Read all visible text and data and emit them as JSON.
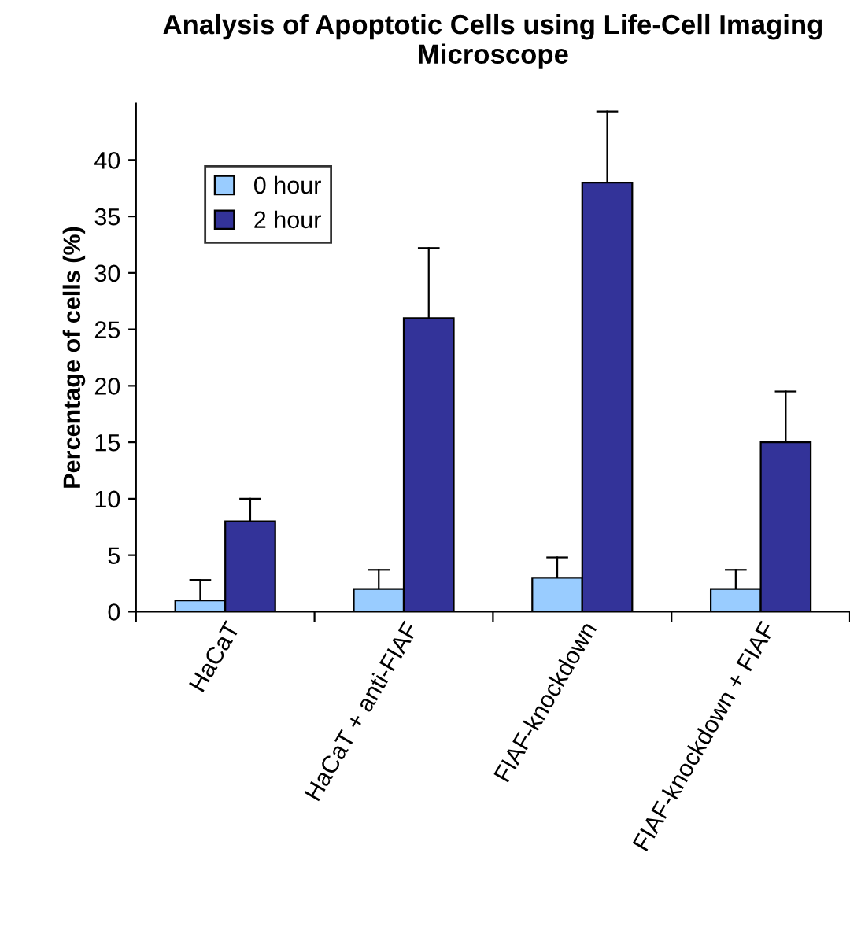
{
  "chart_data": {
    "type": "bar",
    "title": "Analysis of Apoptotic Cells using Life-Cell Imaging Microscope",
    "ylabel": "Percentage of cells (%)",
    "categories": [
      "HaCaT",
      "HaCaT + anti-FIAF",
      "FIAF-knockdown",
      "FIAF-knockdown + FIAF"
    ],
    "series": [
      {
        "name": "0 hour",
        "color": "#99ccff",
        "values": [
          1,
          2,
          3,
          2
        ],
        "errors": [
          [
            1,
            2.8
          ],
          [
            2,
            3.7
          ],
          [
            3,
            4.8
          ],
          [
            2,
            3.7
          ]
        ]
      },
      {
        "name": "2 hour",
        "color": "#333399",
        "values": [
          8,
          26,
          38,
          15
        ],
        "errors": [
          [
            8,
            10
          ],
          [
            26,
            32.2
          ],
          [
            38,
            44.3
          ],
          [
            15,
            19.5
          ]
        ]
      }
    ],
    "ylim": [
      0,
      45
    ],
    "yticks": [
      0,
      5,
      10,
      15,
      20,
      25,
      30,
      35,
      40
    ],
    "grid": false,
    "legend": "top left"
  }
}
